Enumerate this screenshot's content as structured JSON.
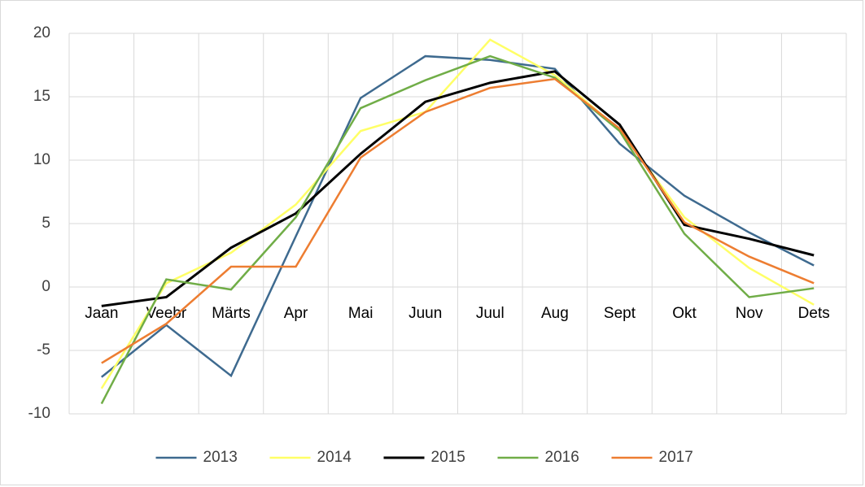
{
  "chart_data": {
    "type": "line",
    "categories": [
      "Jaan",
      "Veebr",
      "Märts",
      "Apr",
      "Mai",
      "Juun",
      "Juul",
      "Aug",
      "Sept",
      "Okt",
      "Nov",
      "Dets"
    ],
    "series": [
      {
        "name": "2013",
        "color": "#3e6a8f",
        "values": [
          -7.1,
          -3,
          -7,
          4,
          14.9,
          18.2,
          17.9,
          17.2,
          11.3,
          7.2,
          4.3,
          1.7
        ]
      },
      {
        "name": "2014",
        "color": "#ffff66",
        "values": [
          -8,
          0.3,
          2.7,
          6.5,
          12.3,
          13.8,
          19.5,
          16.7,
          12.4,
          5.5,
          1.5,
          -1.4
        ]
      },
      {
        "name": "2015",
        "color": "#000000",
        "values": [
          -1.5,
          -0.8,
          3.1,
          5.8,
          10.5,
          14.6,
          16.1,
          17,
          12.8,
          4.9,
          3.8,
          2.5
        ]
      },
      {
        "name": "2016",
        "color": "#70ad47",
        "values": [
          -9.2,
          0.6,
          -0.2,
          5.5,
          14.1,
          16.3,
          18.2,
          16.5,
          12.3,
          4.2,
          -0.8,
          -0.1
        ]
      },
      {
        "name": "2017",
        "color": "#ed7d31",
        "values": [
          -6,
          -2.9,
          1.6,
          1.6,
          10.2,
          13.8,
          15.7,
          16.4,
          12.5,
          5.1,
          2.4,
          0.3
        ]
      }
    ],
    "ylim": [
      -10,
      20
    ],
    "yticks": [
      -10,
      -5,
      0,
      5,
      10,
      15,
      20
    ],
    "grid": true,
    "legend": "bottom"
  }
}
